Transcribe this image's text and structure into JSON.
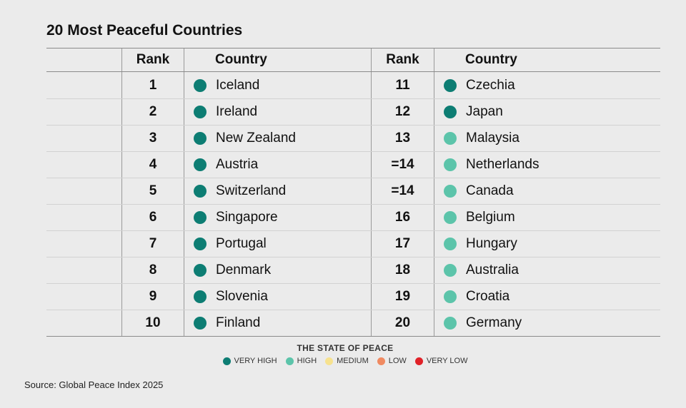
{
  "chart_data": {
    "type": "table",
    "title": "20 Most Peaceful Countries",
    "columns": [
      "Rank",
      "Country",
      "Rank",
      "Country"
    ],
    "rows": [
      {
        "rank": "1",
        "country": "Iceland",
        "state": "VERY HIGH"
      },
      {
        "rank": "2",
        "country": "Ireland",
        "state": "VERY HIGH"
      },
      {
        "rank": "3",
        "country": "New Zealand",
        "state": "VERY HIGH"
      },
      {
        "rank": "4",
        "country": "Austria",
        "state": "VERY HIGH"
      },
      {
        "rank": "5",
        "country": "Switzerland",
        "state": "VERY HIGH"
      },
      {
        "rank": "6",
        "country": "Singapore",
        "state": "VERY HIGH"
      },
      {
        "rank": "7",
        "country": "Portugal",
        "state": "VERY HIGH"
      },
      {
        "rank": "8",
        "country": "Denmark",
        "state": "VERY HIGH"
      },
      {
        "rank": "9",
        "country": "Slovenia",
        "state": "VERY HIGH"
      },
      {
        "rank": "10",
        "country": "Finland",
        "state": "VERY HIGH"
      },
      {
        "rank": "11",
        "country": "Czechia",
        "state": "VERY HIGH"
      },
      {
        "rank": "12",
        "country": "Japan",
        "state": "VERY HIGH"
      },
      {
        "rank": "13",
        "country": "Malaysia",
        "state": "HIGH"
      },
      {
        "rank": "=14",
        "country": "Netherlands",
        "state": "HIGH"
      },
      {
        "rank": "=14",
        "country": "Canada",
        "state": "HIGH"
      },
      {
        "rank": "16",
        "country": "Belgium",
        "state": "HIGH"
      },
      {
        "rank": "17",
        "country": "Hungary",
        "state": "HIGH"
      },
      {
        "rank": "18",
        "country": "Australia",
        "state": "HIGH"
      },
      {
        "rank": "19",
        "country": "Croatia",
        "state": "HIGH"
      },
      {
        "rank": "20",
        "country": "Germany",
        "state": "HIGH"
      }
    ],
    "legend": {
      "title": "THE STATE OF PEACE",
      "items": [
        {
          "label": "VERY HIGH",
          "color": "#0d7d73"
        },
        {
          "label": "HIGH",
          "color": "#5cc4aa"
        },
        {
          "label": "MEDIUM",
          "color": "#f7e28f"
        },
        {
          "label": "LOW",
          "color": "#f08a61"
        },
        {
          "label": "VERY LOW",
          "color": "#e02128"
        }
      ]
    }
  },
  "source": "Source: Global Peace Index 2025"
}
